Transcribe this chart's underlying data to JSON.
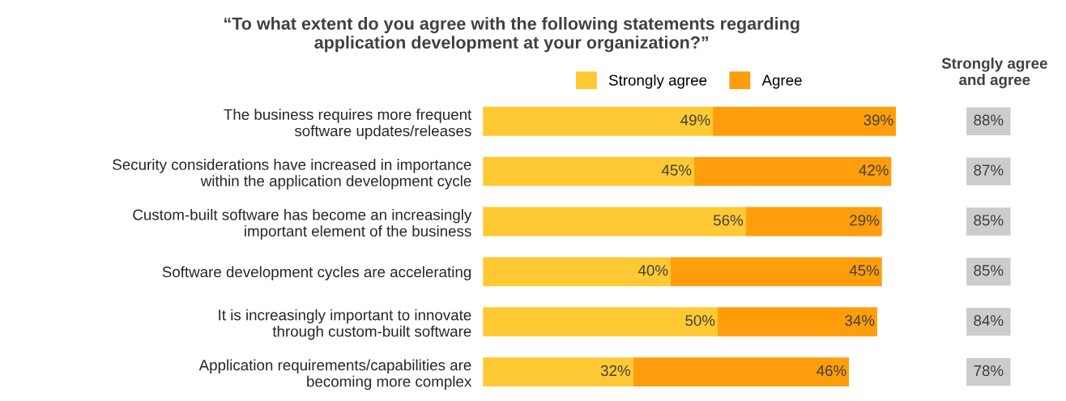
{
  "chart_data": {
    "type": "bar",
    "orientation": "horizontal",
    "stacked": true,
    "title": "“To what extent do you agree with the following statements regarding\napplication development at your organization?”",
    "categories": [
      "The business requires more frequent\nsoftware updates/releases",
      "Security considerations have increased in importance\nwithin the application development cycle",
      "Custom-built software has become an increasingly\nimportant element of the business",
      "Software development cycles are accelerating",
      "It is increasingly important to innovate\nthrough custom-built software",
      "Application requirements/capabilities are\nbecoming more complex"
    ],
    "series": [
      {
        "name": "Strongly agree",
        "color": "#ffc933",
        "values": [
          49,
          45,
          56,
          40,
          50,
          32
        ],
        "value_labels": [
          "49%",
          "45%",
          "56%",
          "40%",
          "50%",
          "32%"
        ]
      },
      {
        "name": "Agree",
        "color": "#ff9e0a",
        "values": [
          39,
          42,
          29,
          45,
          34,
          46
        ],
        "value_labels": [
          "39%",
          "42%",
          "29%",
          "45%",
          "34%",
          "46%"
        ]
      }
    ],
    "annotations": [
      "Strongly agree\nand agree",
      "88%",
      "87%",
      "85%",
      "85%",
      "84%",
      "78%"
    ],
    "legend": "top",
    "grid": false
  }
}
